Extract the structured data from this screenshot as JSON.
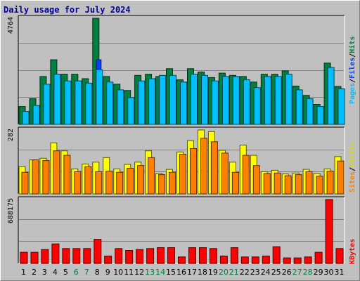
{
  "title": "Daily usage for July 2024",
  "colors": {
    "background": "#c0c0c0",
    "plot_bg": "#c0c0c0",
    "title": "#0000a0",
    "pages": "#00c0ff",
    "files": "#0040ff",
    "hits": "#008040",
    "visits": "#ffff00",
    "sites": "#ff8000",
    "kbytes": "#ff0000",
    "weekday_label": "#000000",
    "weekend_label": "#008040"
  },
  "legend_top": {
    "pages": "Pages",
    "files": "Files",
    "hits": "Hits",
    "sep": "/"
  },
  "legend_mid": {
    "sites": "Sites",
    "visits": "Visits",
    "sep": "/"
  },
  "legend_bot": {
    "kbytes": "KBytes"
  },
  "chart_data": [
    {
      "type": "bar",
      "panel": "hits-files-pages",
      "ymax_label": "4764",
      "ylim": [
        0,
        4764
      ],
      "categories": [
        "1",
        "2",
        "3",
        "4",
        "5",
        "6",
        "7",
        "8",
        "9",
        "10",
        "11",
        "12",
        "13",
        "14",
        "15",
        "16",
        "17",
        "18",
        "19",
        "20",
        "21",
        "22",
        "23",
        "24",
        "25",
        "26",
        "27",
        "28",
        "29",
        "30",
        "31"
      ],
      "weekend_days": [
        6,
        7,
        13,
        14,
        20,
        21,
        27,
        28
      ],
      "series": [
        {
          "name": "Hits",
          "values": [
            800,
            1150,
            2150,
            2900,
            2250,
            2250,
            2050,
            4764,
            2150,
            1800,
            1520,
            2200,
            2250,
            2150,
            2500,
            2000,
            2500,
            2350,
            2100,
            2300,
            2200,
            2150,
            1900,
            2250,
            2250,
            2400,
            1720,
            1300,
            900,
            2750,
            1700
          ]
        },
        {
          "name": "Files",
          "values": [
            500,
            700,
            1400,
            1500,
            1300,
            1350,
            1700,
            2900,
            1500,
            1450,
            1200,
            1500,
            1550,
            1500,
            1600,
            1500,
            1550,
            1500,
            1450,
            1550,
            1500,
            1500,
            1400,
            1500,
            1550,
            1550,
            1400,
            1100,
            700,
            1600,
            1300
          ]
        },
        {
          "name": "Pages",
          "values": [
            580,
            850,
            1800,
            2250,
            1950,
            1950,
            1850,
            2450,
            1900,
            1550,
            1200,
            1950,
            2050,
            2200,
            2200,
            1900,
            2250,
            2200,
            1950,
            2150,
            2150,
            2000,
            1650,
            2150,
            2150,
            2250,
            1550,
            1150,
            800,
            2550,
            1600
          ]
        }
      ]
    },
    {
      "type": "bar",
      "panel": "visits-sites",
      "ymax_label": "282",
      "ylim": [
        0,
        282
      ],
      "categories": [
        "1",
        "2",
        "3",
        "4",
        "5",
        "6",
        "7",
        "8",
        "9",
        "10",
        "11",
        "12",
        "13",
        "14",
        "15",
        "16",
        "17",
        "18",
        "19",
        "20",
        "21",
        "22",
        "23",
        "24",
        "25",
        "26",
        "27",
        "28",
        "29",
        "30",
        "31"
      ],
      "series": [
        {
          "name": "Visits",
          "values": [
            120,
            150,
            157,
            225,
            190,
            110,
            132,
            140,
            160,
            110,
            130,
            140,
            190,
            90,
            108,
            185,
            235,
            282,
            275,
            192,
            140,
            215,
            170,
            98,
            104,
            88,
            92,
            108,
            90,
            110,
            165
          ]
        },
        {
          "name": "Sites",
          "values": [
            95,
            150,
            147,
            190,
            170,
            98,
            120,
            98,
            100,
            95,
            113,
            125,
            160,
            85,
            95,
            175,
            200,
            245,
            230,
            180,
            95,
            170,
            125,
            90,
            92,
            80,
            85,
            98,
            78,
            100,
            145
          ]
        }
      ]
    },
    {
      "type": "bar",
      "panel": "kbytes",
      "ymax_label": "688175",
      "ylim": [
        0,
        688175
      ],
      "categories": [
        "1",
        "2",
        "3",
        "4",
        "5",
        "6",
        "7",
        "8",
        "9",
        "10",
        "11",
        "12",
        "13",
        "14",
        "15",
        "16",
        "17",
        "18",
        "19",
        "20",
        "21",
        "22",
        "23",
        "24",
        "25",
        "26",
        "27",
        "28",
        "29",
        "30",
        "31"
      ],
      "series": [
        {
          "name": "KBytes",
          "values": [
            120000,
            120000,
            150000,
            210000,
            160000,
            160000,
            160000,
            260000,
            80000,
            160000,
            140000,
            150000,
            160000,
            170000,
            170000,
            70000,
            170000,
            170000,
            160000,
            80000,
            170000,
            70000,
            70000,
            80000,
            180000,
            60000,
            60000,
            70000,
            120000,
            688175,
            160000
          ]
        }
      ]
    }
  ]
}
